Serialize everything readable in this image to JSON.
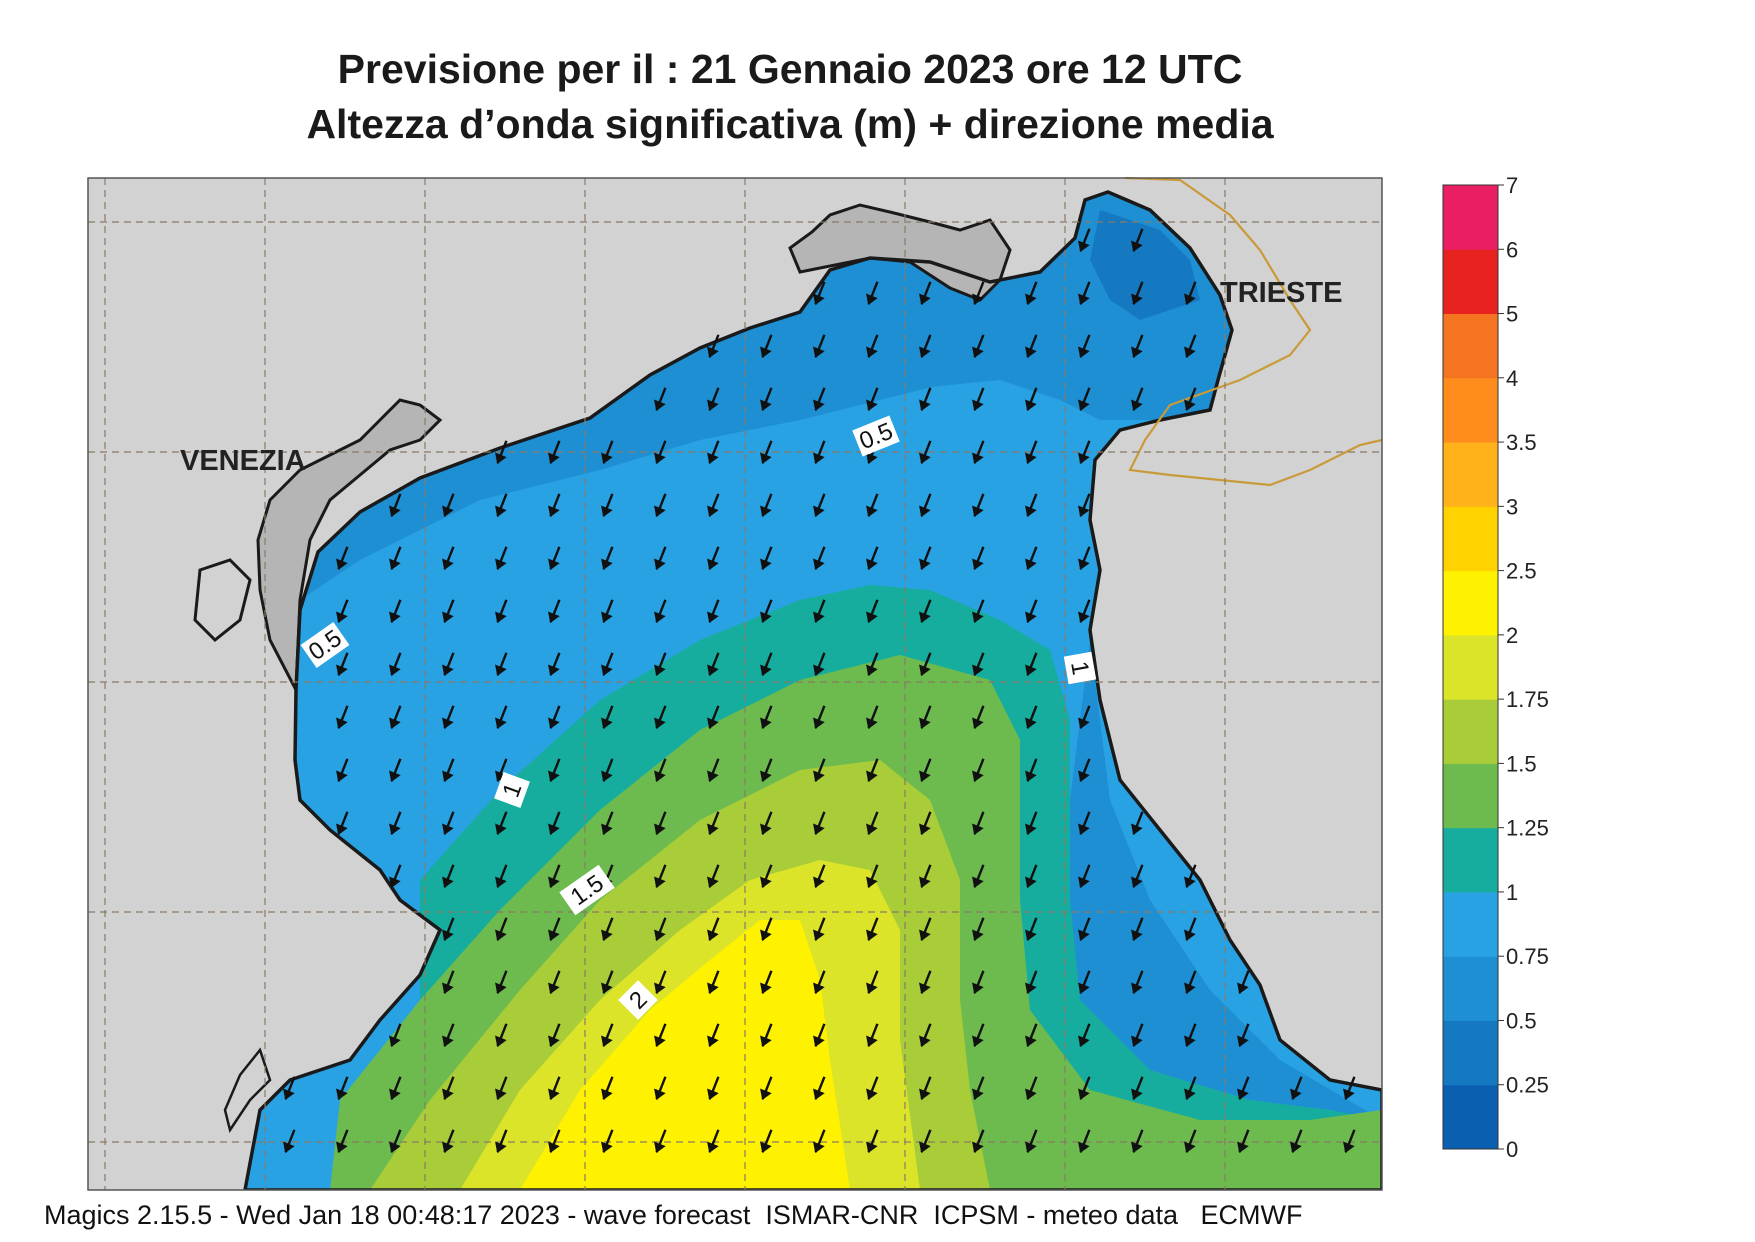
{
  "title_line1": "Previsione per il  :  21  Gennaio  2023   ore 12 UTC",
  "title_line2": "Altezza d’onda significativa (m) + direzione media",
  "cities": [
    {
      "name": "VENEZIA"
    },
    {
      "name": "TRIESTE"
    }
  ],
  "contour_labels": [
    "0.5",
    "0.5",
    "1",
    "1",
    "1.5",
    "2"
  ],
  "legend": {
    "labels": [
      "0",
      "0.25",
      "0.5",
      "0.75",
      "1",
      "1.25",
      "1.5",
      "1.75",
      "2",
      "2.5",
      "3",
      "3.5",
      "4",
      "5",
      "6",
      "7"
    ],
    "colors": [
      "#0a5fb0",
      "#1579c2",
      "#1f8fd3",
      "#29a2e4",
      "#16ad9e",
      "#6dbb4f",
      "#a8cd38",
      "#dce42a",
      "#fff200",
      "#ffd200",
      "#ffb21a",
      "#ff8d1e",
      "#f47421",
      "#e8231f",
      "#ea1e63"
    ]
  },
  "footer": "Magics 2.15.5 - Wed Jan 18 00:48:17 2023 - wave forecast  ISMAR-CNR  ICPSM - meteo data   ECMWF"
}
